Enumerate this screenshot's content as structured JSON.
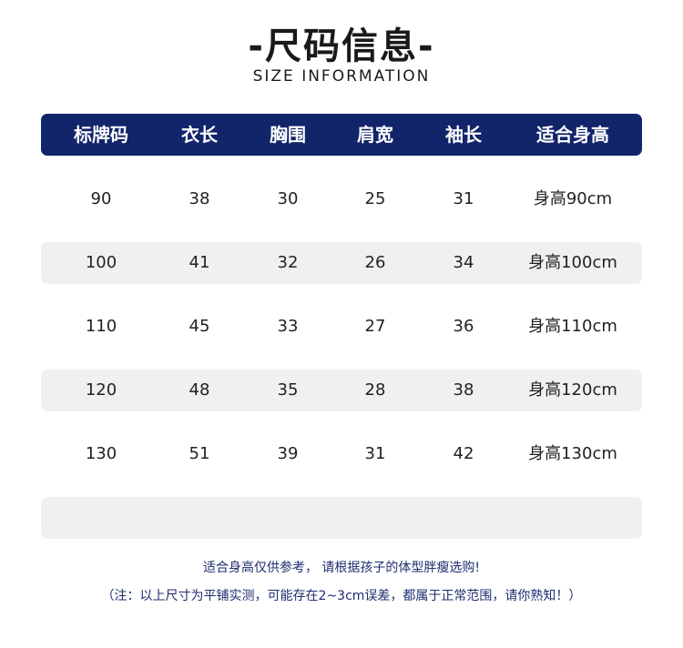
{
  "title": "-尺码信息-",
  "subtitle": "SIZE INFORMATION",
  "colors": {
    "header_bg": "#12246a",
    "shaded_row": "#f0f0f0",
    "note_text": "#1e2d6e"
  },
  "table": {
    "headers": [
      "标牌码",
      "衣长",
      "胸围",
      "肩宽",
      "袖长",
      "适合身高"
    ],
    "rows": [
      [
        "90",
        "38",
        "30",
        "25",
        "31",
        "身高90cm"
      ],
      [
        "100",
        "41",
        "32",
        "26",
        "34",
        "身高100cm"
      ],
      [
        "110",
        "45",
        "33",
        "27",
        "36",
        "身高110cm"
      ],
      [
        "120",
        "48",
        "35",
        "28",
        "38",
        "身高120cm"
      ],
      [
        "130",
        "51",
        "39",
        "31",
        "42",
        "身高130cm"
      ],
      [
        "",
        "",
        "",
        "",
        "",
        ""
      ]
    ]
  },
  "notes": [
    "适合身高仅供参考， 请根据孩子的体型胖瘦选购!",
    "（注：以上尺寸为平铺实测，可能存在2~3cm误差，都属于正常范围，请你熟知！）"
  ]
}
